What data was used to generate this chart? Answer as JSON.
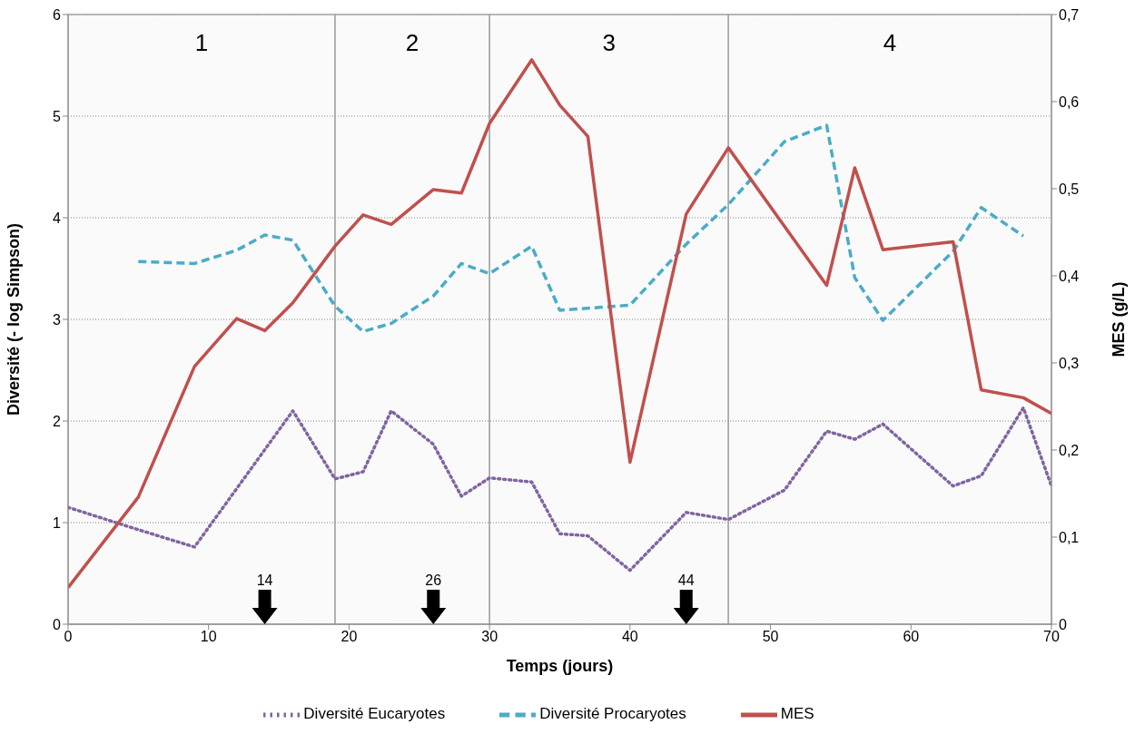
{
  "chart_data": {
    "type": "line",
    "xlabel": "Temps (jours)",
    "ylabel": "Diversité (- log Simpson)",
    "y2label": "MES (g/L)",
    "xlim": [
      0,
      70
    ],
    "xticks": [
      0,
      10,
      20,
      30,
      40,
      50,
      60,
      70
    ],
    "ylim": [
      0,
      6
    ],
    "yticks": [
      0,
      1,
      2,
      3,
      4,
      5,
      6
    ],
    "y2lim": [
      0,
      0.7
    ],
    "y2ticks": [
      0,
      {
        "value": 0.1,
        "label": "0,1"
      },
      {
        "value": 0.2,
        "label": "0,2"
      },
      {
        "value": 0.3,
        "label": "0,3"
      },
      {
        "value": 0.4,
        "label": "0,4"
      },
      {
        "value": 0.5,
        "label": "0,5"
      },
      {
        "value": 0.6,
        "label": "0,6"
      },
      {
        "value": 0.7,
        "label": "0,7"
      }
    ],
    "grid": "y",
    "legend": "bottom",
    "marker": "none",
    "series": [
      {
        "name": "Diversité Eucaryotes",
        "color": "#8064a2",
        "line_style": "dotted",
        "x": [
          0,
          5,
          9,
          16,
          19,
          21,
          23,
          26,
          28,
          30,
          33,
          35,
          37,
          40,
          44,
          47,
          51,
          54,
          56,
          58,
          63,
          65,
          68,
          70
        ],
        "values": [
          1.15,
          0.93,
          0.76,
          2.1,
          1.43,
          1.5,
          2.1,
          1.77,
          1.26,
          1.44,
          1.4,
          0.89,
          0.87,
          0.53,
          1.1,
          1.03,
          1.32,
          1.9,
          1.82,
          1.97,
          1.36,
          1.46,
          2.13,
          1.36
        ]
      },
      {
        "name": "Diversité Procaryotes",
        "color": "#4bacc6",
        "line_style": "dashed",
        "x": [
          5,
          9,
          12,
          14,
          16,
          19,
          21,
          23,
          26,
          28,
          30,
          33,
          35,
          40,
          44,
          47,
          51,
          54,
          56,
          58,
          63,
          65,
          68
        ],
        "values": [
          3.57,
          3.55,
          3.68,
          3.83,
          3.78,
          3.13,
          2.88,
          2.96,
          3.23,
          3.55,
          3.45,
          3.72,
          3.09,
          3.14,
          3.74,
          4.13,
          4.75,
          4.91,
          3.41,
          2.99,
          3.67,
          4.1,
          3.82
        ]
      },
      {
        "name": "MES",
        "color": "#c0504d",
        "line_style": "solid",
        "axis": "y2",
        "x": [
          0,
          5,
          9,
          12,
          14,
          16,
          19,
          21,
          23,
          26,
          28,
          30,
          33,
          35,
          37,
          40,
          44,
          47,
          54,
          56,
          58,
          63,
          65,
          68,
          70
        ],
        "values": [
          0.042,
          0.146,
          0.296,
          0.351,
          0.337,
          0.369,
          0.434,
          0.47,
          0.459,
          0.499,
          0.495,
          0.575,
          0.648,
          0.596,
          0.56,
          0.186,
          0.471,
          0.547,
          0.389,
          0.524,
          0.43,
          0.439,
          0.269,
          0.26,
          0.242
        ]
      }
    ],
    "bands": [
      {
        "axis": "x",
        "from": 0,
        "to": 19,
        "label": "1",
        "color": "#a6a6a6"
      },
      {
        "axis": "x",
        "from": 19,
        "to": 30,
        "label": "2",
        "color": "#a6a6a6"
      },
      {
        "axis": "x",
        "from": 30,
        "to": 47,
        "label": "3",
        "color": "#a6a6a6"
      },
      {
        "axis": "x",
        "from": 47,
        "to": 70,
        "label": "4",
        "color": "#a6a6a6"
      }
    ],
    "annotations": [
      "14",
      "26",
      "44"
    ]
  }
}
